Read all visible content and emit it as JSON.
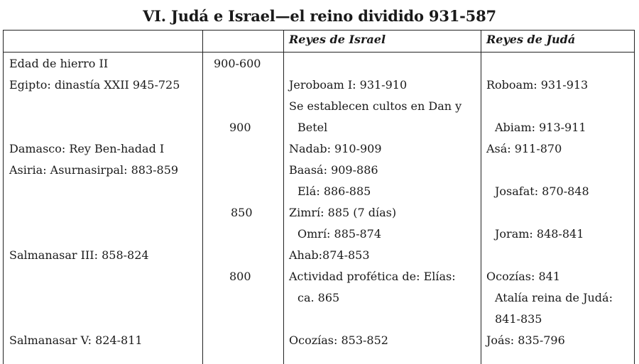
{
  "title": "VI. Judá e Israel—el reino dividido 931-587",
  "headers": {
    "israel": "Reyes de Israel",
    "juda": "Reyes de Judá"
  },
  "col1": [
    "Edad de hierro II",
    "Egipto: dinastía XXII 945-725",
    "Damasco: Rey Ben-hadad I",
    "Asiria: Asurnasirpal: 883-859",
    "Salmanasar III: 858-824",
    "Salmanasar V: 824-811"
  ],
  "dates": [
    "900-600",
    "900",
    "850",
    "800"
  ],
  "israel": [
    "Jeroboam I: 931-910",
    "Se establecen cultos en Dan y",
    "Betel",
    "Nadab: 910-909",
    "Baasá: 909-886",
    "Elá: 886-885",
    "Zimrí: 885 (7 días)",
    "Omrí: 885-874",
    "Ahab:874-853",
    "Actividad profética de: Elías:",
    "ca. 865",
    "Ocozías: 853-852"
  ],
  "juda": [
    "Roboam: 931-913",
    "Abiam: 913-911",
    "Asá: 911-870",
    "Josafat: 870-848",
    "Joram: 848-841",
    "Ocozías: 841",
    "Atalía reina de Judá:",
    "841-835",
    "Joás: 835-796"
  ]
}
